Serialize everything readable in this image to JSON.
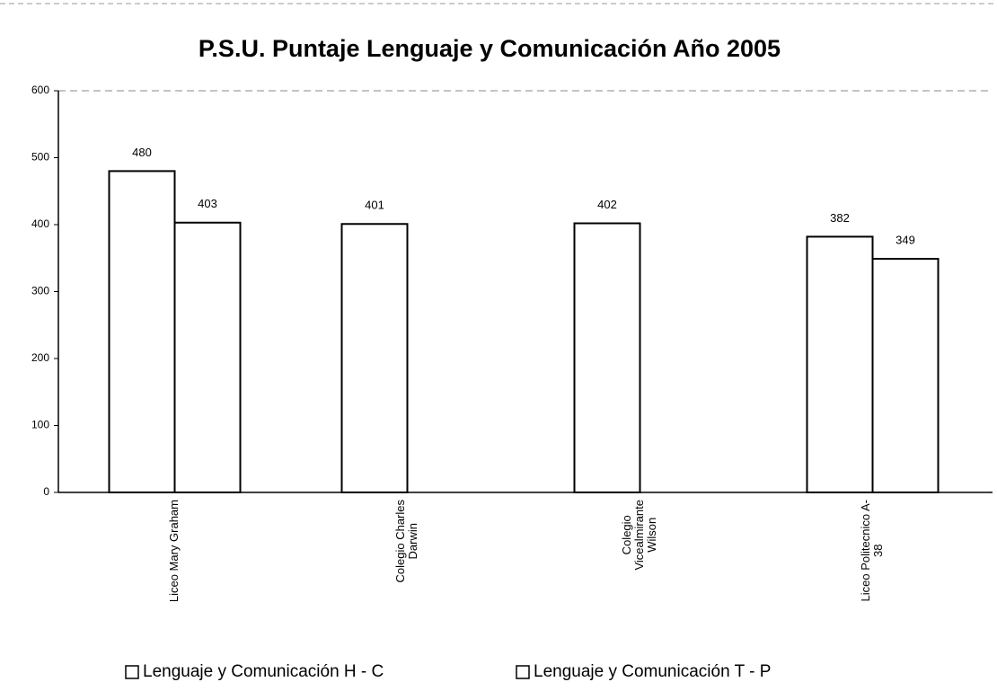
{
  "chart_data": {
    "type": "bar",
    "title": "P.S.U. Puntaje Lenguaje y Comunicación Año 2005",
    "categories": [
      [
        "Liceo Mary Graham"
      ],
      [
        "Colegio Charles",
        "Darwin"
      ],
      [
        "Colegio",
        "Vicealmirante",
        "Wilson"
      ],
      [
        "Liceo Politecnico A-",
        "38"
      ]
    ],
    "series": [
      {
        "name": "Lenguaje y Comunicación H - C",
        "color": "#ffffff",
        "values": [
          480,
          401,
          402,
          382
        ]
      },
      {
        "name": "Lenguaje y Comunicación T - P",
        "color": "#ffffff",
        "values": [
          403,
          null,
          null,
          349
        ]
      }
    ],
    "ylim": [
      0,
      600
    ],
    "yticks": [
      0,
      100,
      200,
      300,
      400,
      500,
      600
    ],
    "legend": "bottom",
    "grid": false
  }
}
